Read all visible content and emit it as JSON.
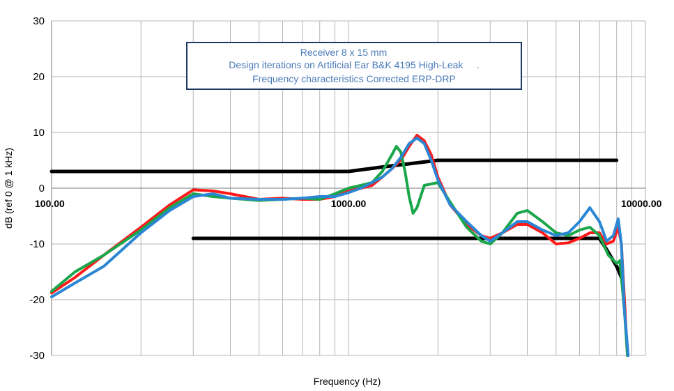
{
  "chart_data": {
    "type": "line",
    "title_lines": [
      "Receiver 8 x 15 mm",
      "Design iterations on Artificial Ear B&K 4195 High-Leak     .",
      "Frequency characteristics Corrected ERP-DRP"
    ],
    "xlabel": "Frequency (Hz)",
    "ylabel": "dB (ref 0 @ 1 kHz)",
    "x_scale": "log",
    "xlim": [
      100,
      10000
    ],
    "ylim": [
      -30,
      30
    ],
    "x_tick_labels": [
      "100.00",
      "1000.00",
      "10000.00"
    ],
    "x_tick_values": [
      100,
      1000,
      10000
    ],
    "y_ticks": [
      30,
      20,
      10,
      0,
      -10,
      -20,
      -30
    ],
    "grid": true,
    "legend": "none",
    "series": [
      {
        "color": "#000000",
        "role": "upper-limit",
        "points": [
          [
            100,
            3
          ],
          [
            1000,
            3
          ],
          [
            1300,
            3.8
          ],
          [
            2000,
            5
          ],
          [
            8000,
            5
          ]
        ]
      },
      {
        "color": "#000000",
        "role": "lower-limit",
        "points": [
          [
            300,
            -9
          ],
          [
            7000,
            -9
          ],
          [
            7400,
            -11
          ],
          [
            8000,
            -14
          ],
          [
            8300,
            -16
          ]
        ]
      },
      {
        "color": "#ff1a1a",
        "points": [
          [
            100,
            -18.8
          ],
          [
            120,
            -16
          ],
          [
            150,
            -12
          ],
          [
            200,
            -7
          ],
          [
            250,
            -3
          ],
          [
            300,
            -0.3
          ],
          [
            350,
            -0.5
          ],
          [
            400,
            -1
          ],
          [
            500,
            -2
          ],
          [
            600,
            -1.8
          ],
          [
            700,
            -2
          ],
          [
            800,
            -2
          ],
          [
            900,
            -1.5
          ],
          [
            1000,
            -0.5
          ],
          [
            1100,
            0
          ],
          [
            1200,
            0.5
          ],
          [
            1300,
            2
          ],
          [
            1400,
            3.5
          ],
          [
            1500,
            5
          ],
          [
            1600,
            7.5
          ],
          [
            1700,
            9.5
          ],
          [
            1800,
            8.5
          ],
          [
            1900,
            6
          ],
          [
            2000,
            2
          ],
          [
            2200,
            -3
          ],
          [
            2500,
            -6.5
          ],
          [
            2800,
            -8.5
          ],
          [
            3000,
            -9
          ],
          [
            3300,
            -8
          ],
          [
            3700,
            -6.5
          ],
          [
            4000,
            -6.5
          ],
          [
            4500,
            -8
          ],
          [
            5000,
            -10
          ],
          [
            5500,
            -9.8
          ],
          [
            6000,
            -9
          ],
          [
            6500,
            -8
          ],
          [
            7000,
            -8
          ],
          [
            7400,
            -10
          ],
          [
            7800,
            -9.5
          ],
          [
            8100,
            -7
          ],
          [
            8300,
            -10
          ],
          [
            8500,
            -20
          ],
          [
            8700,
            -30
          ]
        ]
      },
      {
        "color": "#1aa64a",
        "points": [
          [
            100,
            -18.5
          ],
          [
            120,
            -15
          ],
          [
            150,
            -12
          ],
          [
            200,
            -7.5
          ],
          [
            250,
            -3.5
          ],
          [
            300,
            -1
          ],
          [
            350,
            -1.5
          ],
          [
            400,
            -1.8
          ],
          [
            500,
            -2.2
          ],
          [
            600,
            -2
          ],
          [
            700,
            -1.8
          ],
          [
            800,
            -2
          ],
          [
            900,
            -1
          ],
          [
            1000,
            0
          ],
          [
            1100,
            0.5
          ],
          [
            1200,
            1
          ],
          [
            1300,
            3
          ],
          [
            1400,
            6
          ],
          [
            1450,
            7.5
          ],
          [
            1500,
            6.5
          ],
          [
            1550,
            3
          ],
          [
            1600,
            -1.5
          ],
          [
            1650,
            -4.5
          ],
          [
            1700,
            -3.5
          ],
          [
            1800,
            0.5
          ],
          [
            2000,
            1
          ],
          [
            2200,
            -2.5
          ],
          [
            2500,
            -7
          ],
          [
            2800,
            -9.5
          ],
          [
            3000,
            -10
          ],
          [
            3300,
            -8
          ],
          [
            3700,
            -4.5
          ],
          [
            4000,
            -4
          ],
          [
            4500,
            -6
          ],
          [
            5000,
            -8
          ],
          [
            5500,
            -8.5
          ],
          [
            6000,
            -7.5
          ],
          [
            6500,
            -7
          ],
          [
            7000,
            -8.5
          ],
          [
            7500,
            -12
          ],
          [
            8000,
            -13.5
          ],
          [
            8200,
            -13
          ],
          [
            8500,
            -22
          ],
          [
            8700,
            -30
          ]
        ]
      },
      {
        "color": "#2b86d4",
        "points": [
          [
            100,
            -19.5
          ],
          [
            120,
            -17
          ],
          [
            150,
            -14
          ],
          [
            200,
            -8
          ],
          [
            250,
            -4
          ],
          [
            300,
            -1.5
          ],
          [
            350,
            -1
          ],
          [
            400,
            -1.8
          ],
          [
            500,
            -2
          ],
          [
            600,
            -2
          ],
          [
            700,
            -1.8
          ],
          [
            800,
            -1.5
          ],
          [
            900,
            -1.5
          ],
          [
            1000,
            -0.8
          ],
          [
            1100,
            0
          ],
          [
            1200,
            1
          ],
          [
            1300,
            2
          ],
          [
            1400,
            3.5
          ],
          [
            1500,
            5.5
          ],
          [
            1600,
            8
          ],
          [
            1700,
            9
          ],
          [
            1800,
            8
          ],
          [
            1900,
            5
          ],
          [
            2000,
            1.5
          ],
          [
            2200,
            -3
          ],
          [
            2500,
            -6
          ],
          [
            2800,
            -8.5
          ],
          [
            3000,
            -9.5
          ],
          [
            3300,
            -8
          ],
          [
            3700,
            -6
          ],
          [
            4000,
            -6
          ],
          [
            4500,
            -7.5
          ],
          [
            5000,
            -8.5
          ],
          [
            5500,
            -8
          ],
          [
            6000,
            -6
          ],
          [
            6500,
            -3.5
          ],
          [
            7000,
            -6
          ],
          [
            7400,
            -9.5
          ],
          [
            7800,
            -8.5
          ],
          [
            8100,
            -5.5
          ],
          [
            8300,
            -10
          ],
          [
            8500,
            -22
          ],
          [
            8750,
            -30
          ]
        ]
      }
    ]
  }
}
